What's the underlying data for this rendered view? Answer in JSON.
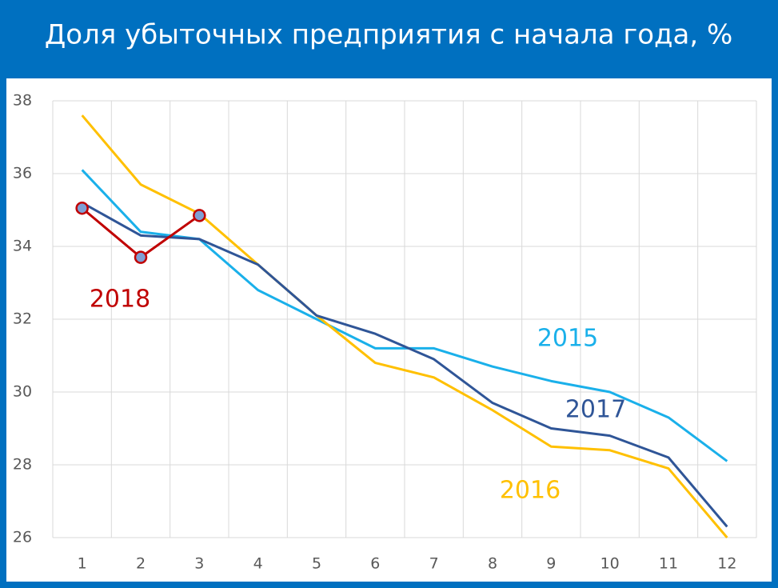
{
  "chart_data": {
    "type": "line",
    "title": "Доля убыточных предприятия с начала года, %",
    "categories": [
      "1",
      "2",
      "3",
      "4",
      "5",
      "6",
      "7",
      "8",
      "9",
      "10",
      "11",
      "12"
    ],
    "series": [
      {
        "name": "2015",
        "color": "#1ab0ea",
        "values": [
          36.1,
          34.4,
          34.2,
          32.8,
          32.0,
          31.2,
          31.2,
          30.7,
          30.3,
          30.0,
          29.3,
          28.1
        ]
      },
      {
        "name": "2016",
        "color": "#ffc000",
        "values": [
          37.6,
          35.7,
          34.9,
          33.5,
          32.1,
          30.8,
          30.4,
          29.5,
          28.5,
          28.4,
          27.9,
          26.0
        ]
      },
      {
        "name": "2017",
        "color": "#2f5597",
        "values": [
          35.2,
          34.3,
          34.2,
          33.5,
          32.1,
          31.6,
          30.9,
          29.7,
          29.0,
          28.8,
          28.2,
          26.3
        ]
      },
      {
        "name": "2018",
        "color": "#c00000",
        "markers": true,
        "values": [
          35.05,
          33.7,
          34.85,
          null,
          null,
          null,
          null,
          null,
          null,
          null,
          null,
          null
        ]
      }
    ],
    "ylim": [
      26,
      38
    ],
    "yticks": [
      26,
      28,
      30,
      32,
      34,
      36,
      38
    ],
    "grid": true
  }
}
